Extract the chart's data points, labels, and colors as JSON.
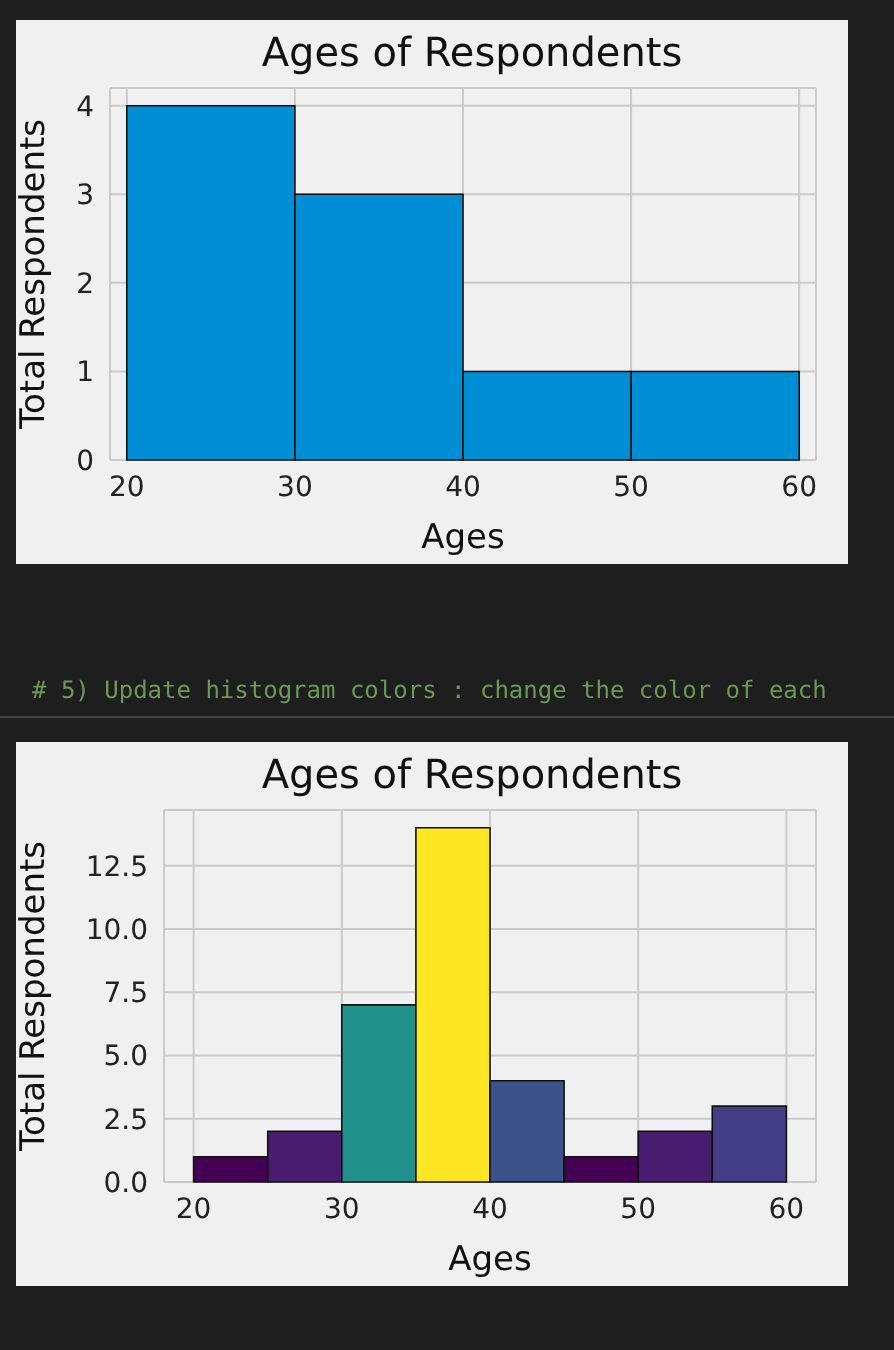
{
  "chart_data": [
    {
      "type": "histogram",
      "title": "Ages of Respondents",
      "xlabel": "Ages",
      "ylabel": "Total Respondents",
      "bins": [
        20,
        30,
        40,
        50,
        60
      ],
      "values": [
        4,
        3,
        1,
        1
      ],
      "color": "#008fd5",
      "xlim": [
        19,
        61
      ],
      "xticks": [
        20,
        30,
        40,
        50,
        60
      ],
      "ylim": [
        0,
        4.2
      ],
      "yticks": [
        0,
        1,
        2,
        3,
        4
      ],
      "grid": true
    },
    {
      "type": "histogram",
      "title": "Ages of Respondents",
      "xlabel": "Ages",
      "ylabel": "Total Respondents",
      "annotations": [
        "# 5) Update histogram colors : change the color of each"
      ],
      "bins": [
        20,
        25,
        30,
        35,
        40,
        45,
        50,
        55,
        60
      ],
      "values": [
        1,
        2,
        7,
        14,
        4,
        1,
        2,
        3
      ],
      "colors": [
        "#440154",
        "#481c6e",
        "#21918c",
        "#fde725",
        "#3b528b",
        "#440154",
        "#481c6e",
        "#433e85"
      ],
      "xlim": [
        18,
        62
      ],
      "xticks": [
        20,
        30,
        40,
        50,
        60
      ],
      "ylim": [
        0,
        14.7
      ],
      "yticks": [
        {
          "value": 0,
          "label": "0.0"
        },
        {
          "value": 2.5,
          "label": "2.5"
        },
        {
          "value": 5,
          "label": "5.0"
        },
        {
          "value": 7.5,
          "label": "7.5"
        },
        {
          "value": 10,
          "label": "10.0"
        },
        {
          "value": 12.5,
          "label": "12.5"
        }
      ],
      "grid": true
    }
  ]
}
